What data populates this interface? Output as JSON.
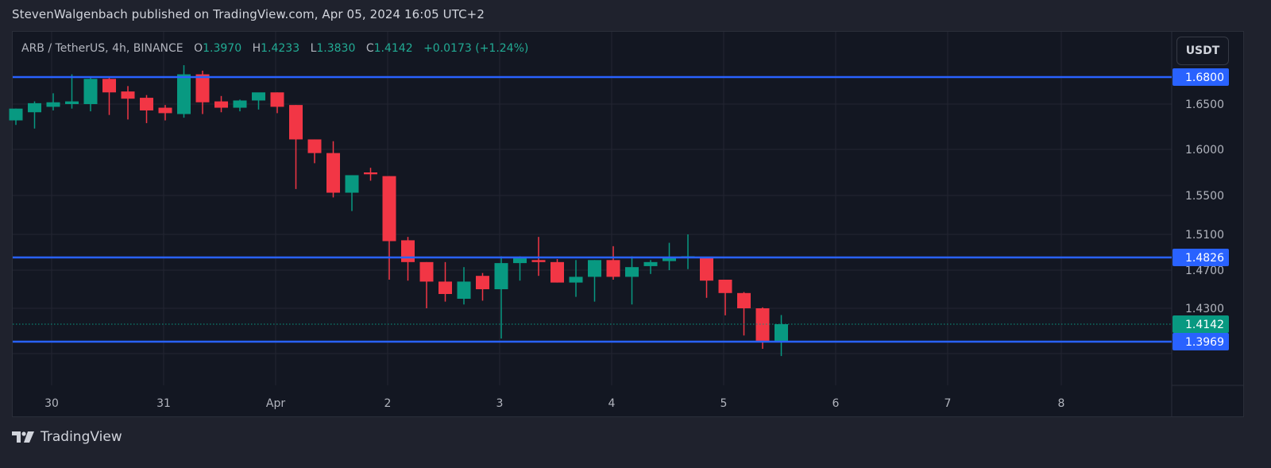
{
  "publisher_line": "StevenWalgenbach published on TradingView.com, Apr 05, 2024 16:05 UTC+2",
  "legend": {
    "symbol": "ARB / TetherUS, 4h, BINANCE",
    "o_label": "O",
    "o_value": "1.3970",
    "h_label": "H",
    "h_value": "1.4233",
    "l_label": "L",
    "l_value": "1.3830",
    "c_label": "C",
    "c_value": "1.4142",
    "change": "+0.0173 (+1.24%)"
  },
  "currency_button": "USDT",
  "footer": {
    "brand": "TradingView"
  },
  "colors": {
    "up": "#089981",
    "down": "#f23645",
    "hline": "#2962ff",
    "grid": "#232632",
    "last_price": "#089981"
  },
  "chart_data": {
    "type": "candlestick",
    "title": "ARB / TetherUS, 4h, BINANCE",
    "xlabel": "",
    "ylabel": "USDT",
    "ylim": [
      1.38,
      1.7
    ],
    "grid": true,
    "price_axis_ticks": [
      "1.6500",
      "1.6000",
      "1.5500",
      "1.5100",
      "1.4700",
      "1.4300"
    ],
    "time_axis_ticks": [
      "30",
      "31",
      "Apr",
      "2",
      "3",
      "4",
      "5",
      "6",
      "7",
      "8"
    ],
    "horizontal_lines": [
      {
        "price": 1.68,
        "label": "1.6800"
      },
      {
        "price": 1.4826,
        "label": "1.4826"
      },
      {
        "price": 1.3969,
        "label": "1.3969"
      }
    ],
    "last_price": {
      "price": 1.4142,
      "label": "1.4142"
    },
    "candles": [
      {
        "o": 1.632,
        "h": 1.645,
        "l": 1.627,
        "c": 1.645
      },
      {
        "o": 1.641,
        "h": 1.653,
        "l": 1.623,
        "c": 1.651
      },
      {
        "o": 1.647,
        "h": 1.662,
        "l": 1.643,
        "c": 1.652
      },
      {
        "o": 1.65,
        "h": 1.683,
        "l": 1.645,
        "c": 1.653
      },
      {
        "o": 1.65,
        "h": 1.68,
        "l": 1.642,
        "c": 1.678
      },
      {
        "o": 1.678,
        "h": 1.68,
        "l": 1.638,
        "c": 1.663
      },
      {
        "o": 1.664,
        "h": 1.67,
        "l": 1.633,
        "c": 1.656
      },
      {
        "o": 1.657,
        "h": 1.66,
        "l": 1.629,
        "c": 1.643
      },
      {
        "o": 1.646,
        "h": 1.649,
        "l": 1.632,
        "c": 1.64
      },
      {
        "o": 1.639,
        "h": 1.693,
        "l": 1.635,
        "c": 1.683
      },
      {
        "o": 1.683,
        "h": 1.687,
        "l": 1.639,
        "c": 1.652
      },
      {
        "o": 1.653,
        "h": 1.659,
        "l": 1.641,
        "c": 1.646
      },
      {
        "o": 1.646,
        "h": 1.655,
        "l": 1.642,
        "c": 1.654
      },
      {
        "o": 1.654,
        "h": 1.662,
        "l": 1.644,
        "c": 1.663
      },
      {
        "o": 1.663,
        "h": 1.663,
        "l": 1.64,
        "c": 1.647
      },
      {
        "o": 1.649,
        "h": 1.649,
        "l": 1.557,
        "c": 1.611
      },
      {
        "o": 1.611,
        "h": 1.611,
        "l": 1.585,
        "c": 1.596
      },
      {
        "o": 1.596,
        "h": 1.609,
        "l": 1.548,
        "c": 1.553
      },
      {
        "o": 1.553,
        "h": 1.572,
        "l": 1.534,
        "c": 1.572
      },
      {
        "o": 1.575,
        "h": 1.58,
        "l": 1.566,
        "c": 1.573
      },
      {
        "o": 1.571,
        "h": 1.571,
        "l": 1.46,
        "c": 1.502
      },
      {
        "o": 1.503,
        "h": 1.507,
        "l": 1.459,
        "c": 1.478
      },
      {
        "o": 1.478,
        "h": 1.478,
        "l": 1.43,
        "c": 1.458
      },
      {
        "o": 1.458,
        "h": 1.478,
        "l": 1.437,
        "c": 1.445
      },
      {
        "o": 1.44,
        "h": 1.473,
        "l": 1.434,
        "c": 1.458
      },
      {
        "o": 1.464,
        "h": 1.467,
        "l": 1.438,
        "c": 1.45
      },
      {
        "o": 1.45,
        "h": 1.484,
        "l": 1.4,
        "c": 1.477
      },
      {
        "o": 1.477,
        "h": 1.484,
        "l": 1.459,
        "c": 1.482
      },
      {
        "o": 1.48,
        "h": 1.507,
        "l": 1.464,
        "c": 1.478
      },
      {
        "o": 1.478,
        "h": 1.481,
        "l": 1.457,
        "c": 1.457
      },
      {
        "o": 1.457,
        "h": 1.48,
        "l": 1.442,
        "c": 1.463
      },
      {
        "o": 1.463,
        "h": 1.48,
        "l": 1.437,
        "c": 1.48
      },
      {
        "o": 1.48,
        "h": 1.496,
        "l": 1.46,
        "c": 1.463
      },
      {
        "o": 1.463,
        "h": 1.484,
        "l": 1.434,
        "c": 1.473
      },
      {
        "o": 1.474,
        "h": 1.48,
        "l": 1.466,
        "c": 1.478
      },
      {
        "o": 1.479,
        "h": 1.5,
        "l": 1.47,
        "c": 1.483
      },
      {
        "o": 1.483,
        "h": 1.51,
        "l": 1.471,
        "c": 1.484
      },
      {
        "o": 1.483,
        "h": 1.483,
        "l": 1.441,
        "c": 1.459
      },
      {
        "o": 1.46,
        "h": 1.458,
        "l": 1.423,
        "c": 1.446
      },
      {
        "o": 1.446,
        "h": 1.447,
        "l": 1.403,
        "c": 1.43
      },
      {
        "o": 1.43,
        "h": 1.431,
        "l": 1.39,
        "c": 1.397
      },
      {
        "o": 1.397,
        "h": 1.4233,
        "l": 1.383,
        "c": 1.4142
      }
    ]
  }
}
